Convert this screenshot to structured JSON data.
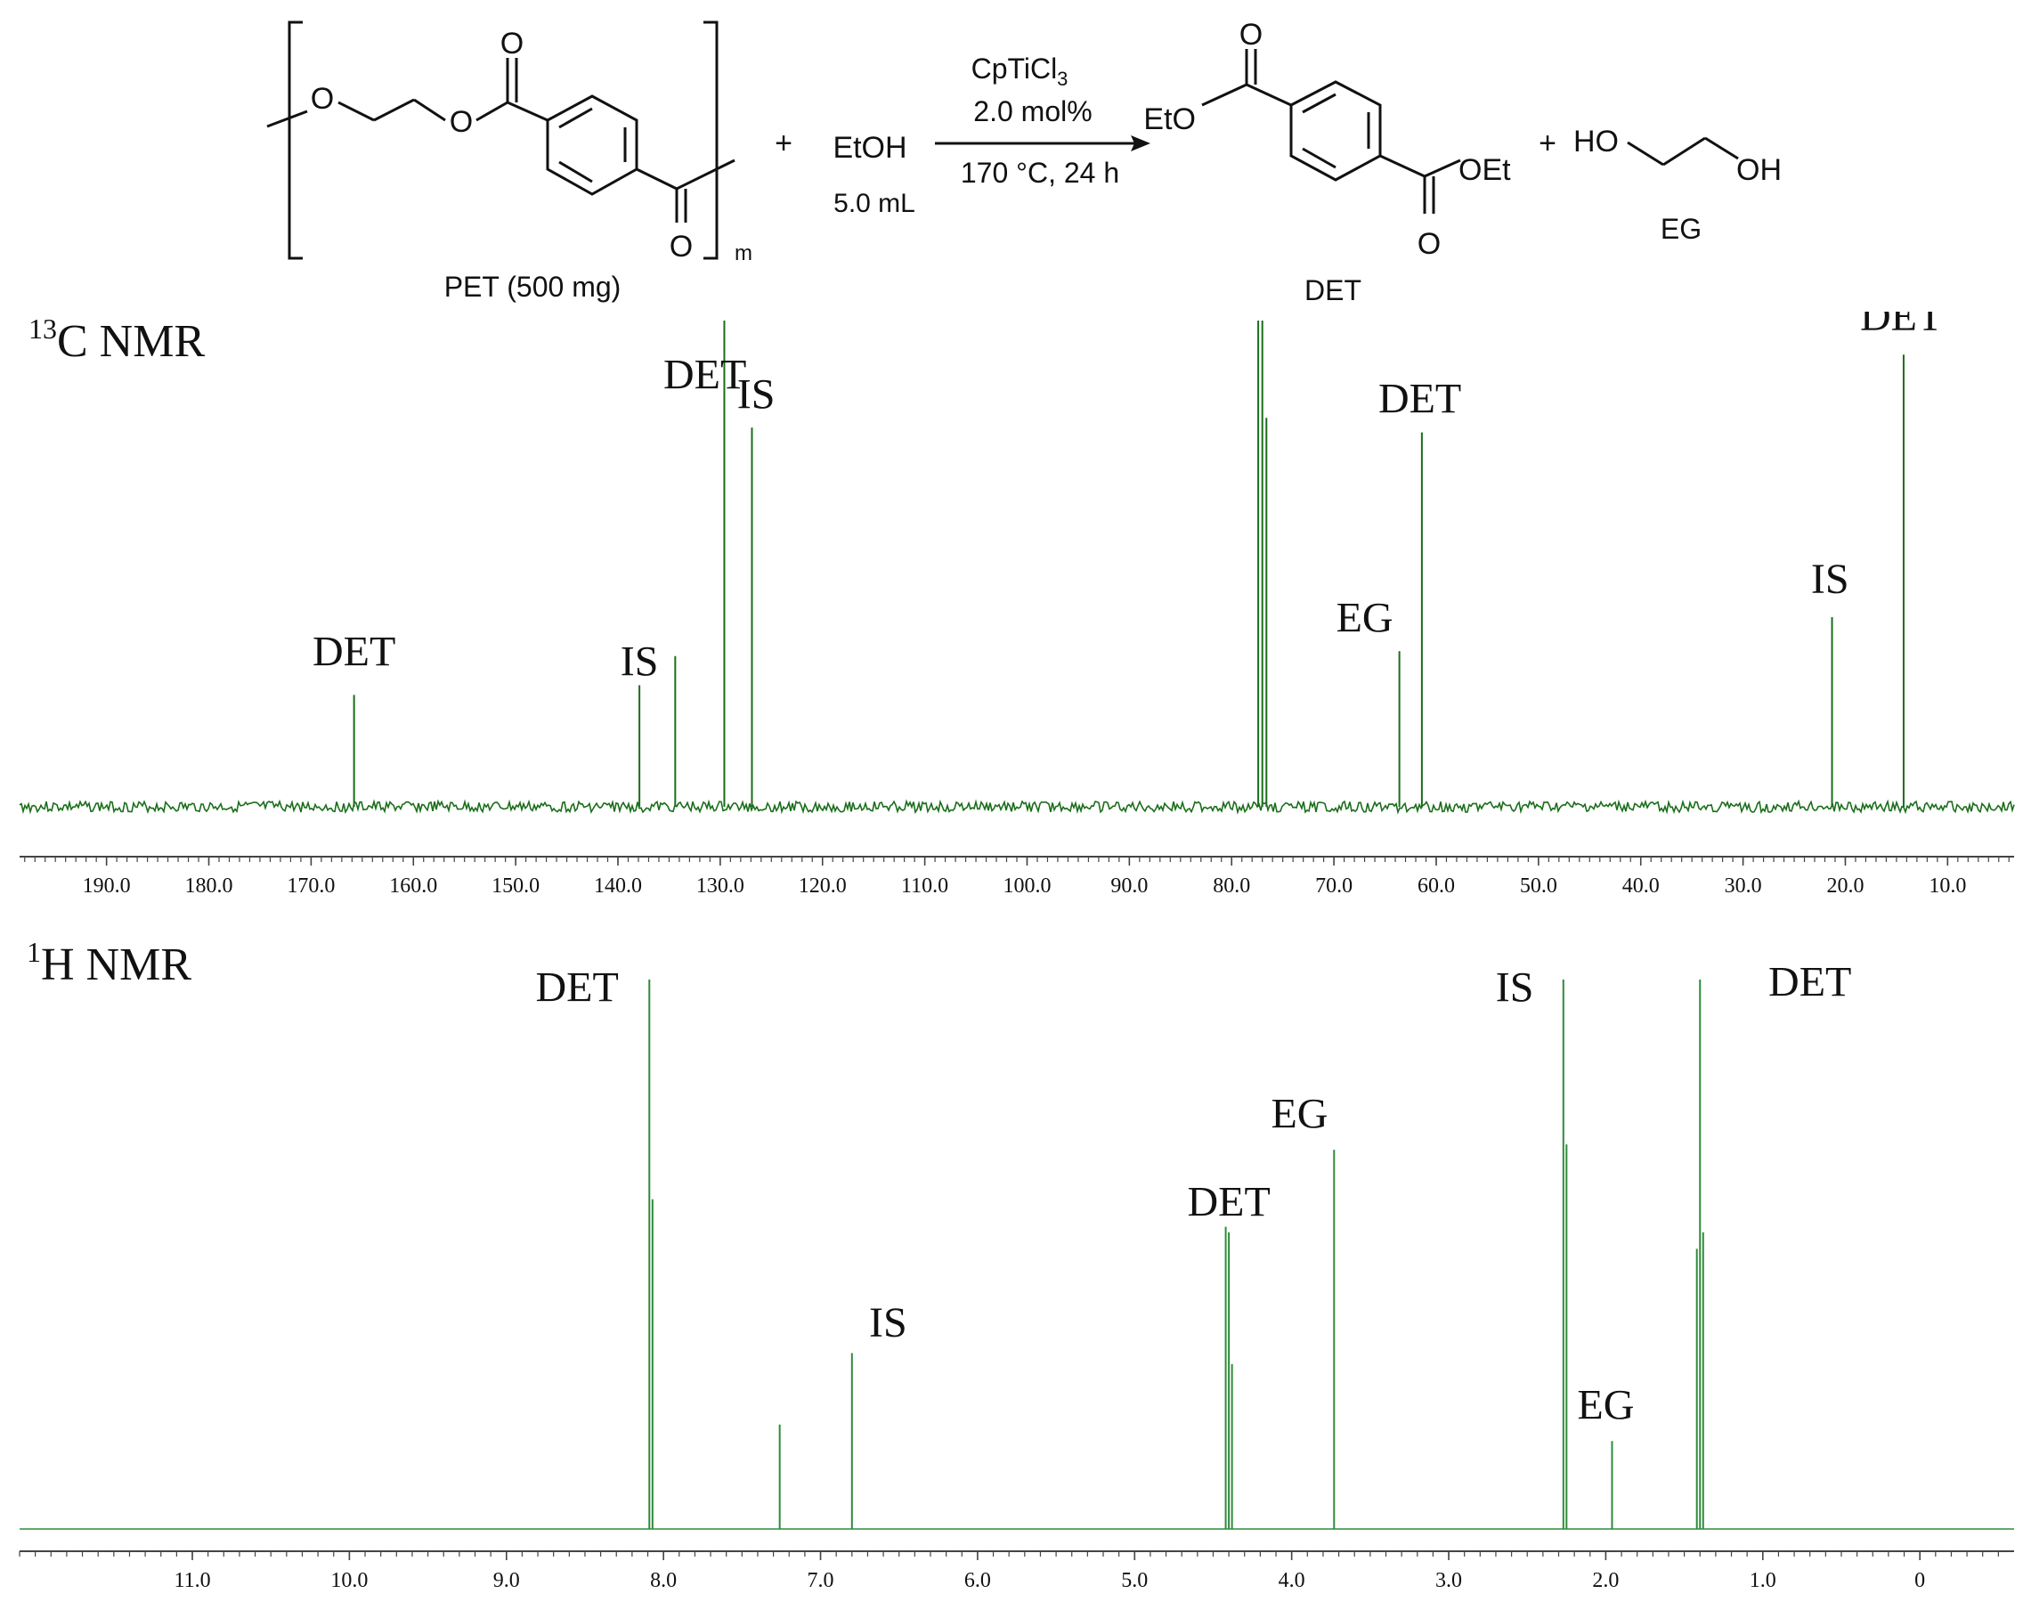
{
  "scheme": {
    "pet_label": "PET (500 mg)",
    "repeat_index": "m",
    "plus_1": "+",
    "etoh": "EtOH",
    "etoh_amount": "5.0 mL",
    "catalyst": "CpTiCl",
    "catalyst_sub": "3",
    "loading": "2.0 mol%",
    "conditions": "170 °C, 24 h",
    "det_label": "DET",
    "eto": "EtO",
    "oet": "OEt",
    "plus_2": "+",
    "ho": "HO",
    "oh": "OH",
    "eg_label": "EG",
    "o_atom": "O"
  },
  "chart_data": [
    {
      "type": "line",
      "title_sup": "13",
      "title": "C NMR",
      "color": "#1a6e1a",
      "x_reversed": true,
      "xlim": [
        198.5,
        3.5
      ],
      "ticks": [
        190.0,
        180.0,
        170.0,
        160.0,
        150.0,
        140.0,
        130.0,
        120.0,
        110.0,
        100.0,
        90.0,
        80.0,
        70.0,
        60.0,
        50.0,
        40.0,
        30.0,
        20.0,
        10.0
      ],
      "tick_labels": [
        "190.0",
        "180.0",
        "170.0",
        "160.0",
        "150.0",
        "140.0",
        "130.0",
        "120.0",
        "110.0",
        "100.0",
        "90.0",
        "80.0",
        "70.0",
        "60.0",
        "50.0",
        "40.0",
        "30.0",
        "20.0",
        "10.0"
      ],
      "peaks": [
        {
          "x": 165.8,
          "h": 0.23
        },
        {
          "x": 137.9,
          "h": 0.25
        },
        {
          "x": 134.4,
          "h": 0.31
        },
        {
          "x": 129.6,
          "h": 1.0
        },
        {
          "x": 126.9,
          "h": 0.78
        },
        {
          "x": 77.4,
          "h": 1.0
        },
        {
          "x": 77.0,
          "h": 1.0
        },
        {
          "x": 76.6,
          "h": 0.8
        },
        {
          "x": 63.6,
          "h": 0.32
        },
        {
          "x": 61.4,
          "h": 0.77
        },
        {
          "x": 21.3,
          "h": 0.39
        },
        {
          "x": 14.3,
          "h": 0.93
        }
      ],
      "annotations": [
        {
          "text": "DET",
          "x": 165.8,
          "y": 0.29
        },
        {
          "text": "IS",
          "x": 137.9,
          "y": 0.27
        },
        {
          "text": "DET",
          "x": 131.5,
          "y": 0.86
        },
        {
          "text": "IS",
          "x": 126.5,
          "y": 0.82
        },
        {
          "text": "EG",
          "x": 67.0,
          "y": 0.36
        },
        {
          "text": "DET",
          "x": 61.6,
          "y": 0.81
        },
        {
          "text": "IS",
          "x": 21.5,
          "y": 0.44
        },
        {
          "text": "DET",
          "x": 14.5,
          "y": 0.98
        }
      ]
    },
    {
      "type": "line",
      "title_sup": "1",
      "title": "H NMR",
      "color": "#2e8b3a",
      "x_reversed": true,
      "xlim": [
        12.1,
        -0.6
      ],
      "ticks": [
        11.0,
        10.0,
        9.0,
        8.0,
        7.0,
        6.0,
        5.0,
        4.0,
        3.0,
        2.0,
        1.0,
        0.0
      ],
      "tick_labels": [
        "11.0",
        "10.0",
        "9.0",
        "8.0",
        "7.0",
        "6.0",
        "5.0",
        "4.0",
        "3.0",
        "2.0",
        "1.0",
        "0"
      ],
      "peaks": [
        {
          "x": 8.09,
          "h": 1.0
        },
        {
          "x": 8.07,
          "h": 0.6
        },
        {
          "x": 7.26,
          "h": 0.19
        },
        {
          "x": 6.8,
          "h": 0.32
        },
        {
          "x": 4.42,
          "h": 0.55
        },
        {
          "x": 4.4,
          "h": 0.54
        },
        {
          "x": 4.38,
          "h": 0.3
        },
        {
          "x": 3.73,
          "h": 0.69
        },
        {
          "x": 2.27,
          "h": 1.0
        },
        {
          "x": 2.25,
          "h": 0.7
        },
        {
          "x": 1.96,
          "h": 0.16
        },
        {
          "x": 1.42,
          "h": 0.51
        },
        {
          "x": 1.4,
          "h": 1.0
        },
        {
          "x": 1.38,
          "h": 0.54
        }
      ],
      "annotations": [
        {
          "text": "DET",
          "x": 8.55,
          "y": 0.96
        },
        {
          "text": "IS",
          "x": 6.57,
          "y": 0.35
        },
        {
          "text": "DET",
          "x": 4.4,
          "y": 0.57
        },
        {
          "text": "EG",
          "x": 3.95,
          "y": 0.73
        },
        {
          "text": "IS",
          "x": 2.58,
          "y": 0.96
        },
        {
          "text": "EG",
          "x": 2.0,
          "y": 0.2
        },
        {
          "text": "DET",
          "x": 0.7,
          "y": 0.97
        }
      ]
    }
  ]
}
